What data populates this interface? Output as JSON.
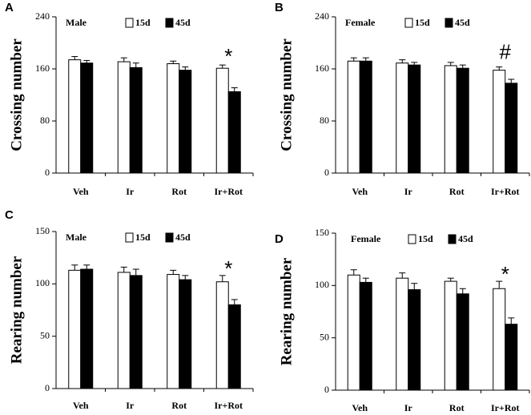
{
  "chart_data": [
    {
      "type": "bar",
      "panel_label": "A",
      "sex_label": "Male",
      "ylabel": "Crossing number",
      "ylim": [
        0,
        240
      ],
      "yticks": [
        "0",
        "80",
        "160",
        "240"
      ],
      "categories": [
        "Veh",
        "Ir",
        "Rot",
        "Ir+Rot"
      ],
      "series": [
        {
          "name": "15d",
          "color": "#ffffff",
          "values": [
            174,
            171,
            168,
            161
          ],
          "errors": [
            5,
            6,
            4,
            5
          ]
        },
        {
          "name": "45d",
          "color": "#000000",
          "values": [
            169,
            162,
            158,
            125
          ],
          "errors": [
            4,
            7,
            5,
            6
          ]
        }
      ],
      "significance": "*",
      "significance_category": "Ir+Rot"
    },
    {
      "type": "bar",
      "panel_label": "B",
      "sex_label": "Female",
      "ylabel": "Crossing number",
      "ylim": [
        0,
        240
      ],
      "yticks": [
        "0",
        "80",
        "160",
        "240"
      ],
      "categories": [
        "Veh",
        "Ir",
        "Rot",
        "Ir+Rot"
      ],
      "series": [
        {
          "name": "15d",
          "color": "#ffffff",
          "values": [
            172,
            169,
            165,
            158
          ],
          "errors": [
            5,
            5,
            5,
            5
          ]
        },
        {
          "name": "45d",
          "color": "#000000",
          "values": [
            172,
            166,
            161,
            138
          ],
          "errors": [
            5,
            4,
            5,
            6
          ]
        }
      ],
      "significance": "#",
      "significance_category": "Ir+Rot"
    },
    {
      "type": "bar",
      "panel_label": "C",
      "sex_label": "Male",
      "ylabel": "Rearing number",
      "ylim": [
        0,
        150
      ],
      "yticks": [
        "0",
        "50",
        "100",
        "150"
      ],
      "categories": [
        "Veh",
        "Ir",
        "Rot",
        "Ir+Rot"
      ],
      "series": [
        {
          "name": "15d",
          "color": "#ffffff",
          "values": [
            113,
            111,
            109,
            102
          ],
          "errors": [
            5,
            5,
            4,
            6
          ]
        },
        {
          "name": "45d",
          "color": "#000000",
          "values": [
            114,
            108,
            104,
            80
          ],
          "errors": [
            4,
            6,
            4,
            5
          ]
        }
      ],
      "significance": "*",
      "significance_category": "Ir+Rot"
    },
    {
      "type": "bar",
      "panel_label": "D",
      "sex_label": "Female",
      "ylabel": "Rearing number",
      "ylim": [
        0,
        150
      ],
      "yticks": [
        "0",
        "50",
        "100",
        "150"
      ],
      "categories": [
        "Veh",
        "Ir",
        "Rot",
        "Ir+Rot"
      ],
      "series": [
        {
          "name": "15d",
          "color": "#ffffff",
          "values": [
            110,
            107,
            104,
            97
          ],
          "errors": [
            5,
            5,
            3,
            7
          ]
        },
        {
          "name": "45d",
          "color": "#000000",
          "values": [
            103,
            96,
            92,
            63
          ],
          "errors": [
            4,
            6,
            5,
            6
          ]
        }
      ],
      "significance": "*",
      "significance_category": "Ir+Rot"
    }
  ]
}
